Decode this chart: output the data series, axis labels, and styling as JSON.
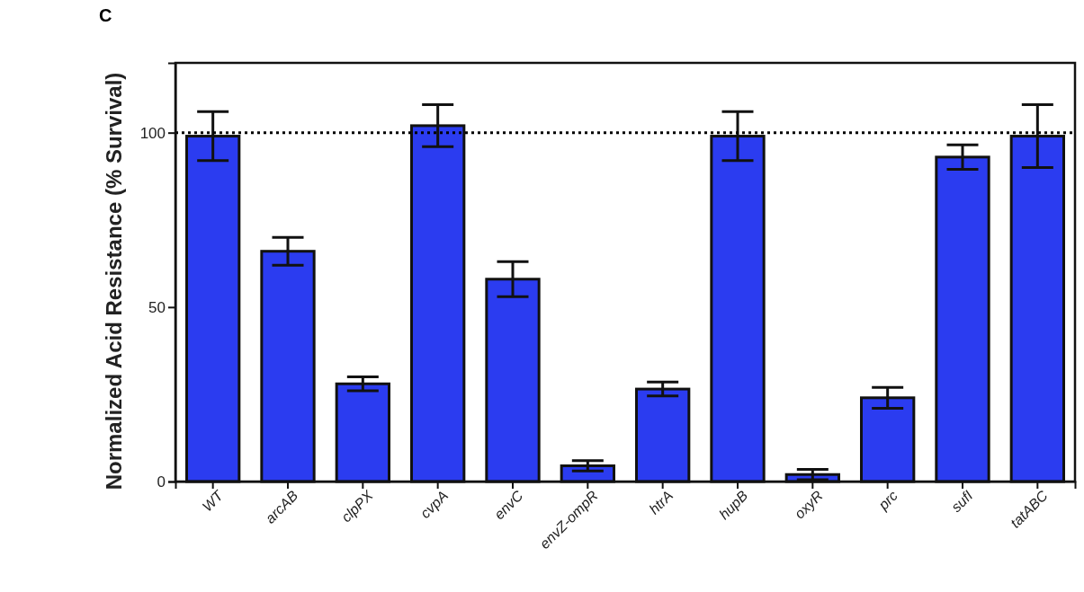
{
  "chart_data": {
    "type": "bar",
    "ylabel": "Normalized Acid Resistance (% Survival)",
    "annotations": [
      "C"
    ],
    "categories": [
      "WT",
      "arcAB",
      "clpPX",
      "cvpA",
      "envC",
      "envZ-ompR",
      "htrA",
      "hupB",
      "oxyR",
      "prc",
      "sufI",
      "tatABC"
    ],
    "series": [
      {
        "color": "#2b3cf0",
        "values": [
          99,
          66,
          28,
          102,
          58,
          4.5,
          26.5,
          99,
          2,
          24,
          93,
          99
        ],
        "errors": [
          7,
          4,
          2,
          6,
          5,
          1.5,
          2,
          7,
          1.5,
          3,
          3.5,
          9
        ]
      }
    ],
    "ylim": [
      0,
      120
    ],
    "yticks": [
      0,
      50,
      100
    ],
    "grid": false,
    "ref_lines": [
      {
        "axis": "y",
        "value": 100,
        "line_style": "dotted",
        "color": "#000000"
      }
    ]
  }
}
